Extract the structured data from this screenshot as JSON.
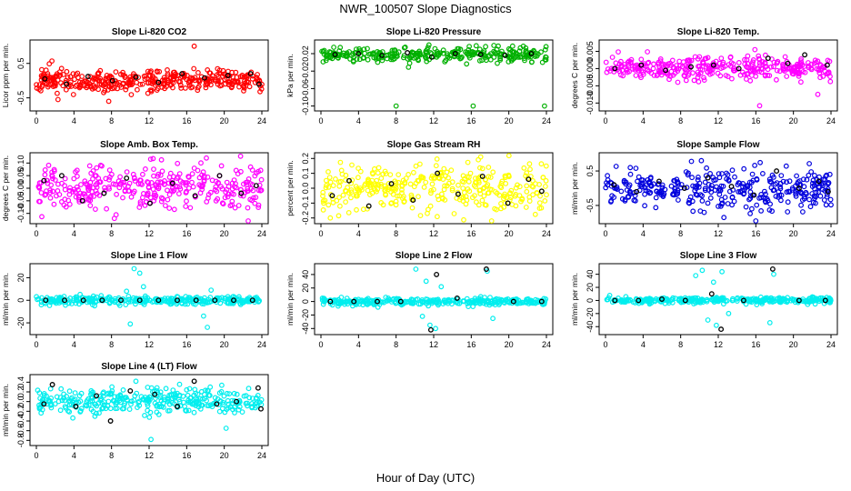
{
  "figure": {
    "title": "NWR_100507  Slope Diagnostics",
    "xlabel": "Hour of Day (UTC)"
  },
  "chart_data": [
    {
      "type": "scatter",
      "title": "Slope Li-820 CO2",
      "ylabel": "Licor ppm per min.",
      "xlim": [
        0,
        24
      ],
      "xticks": [
        0,
        4,
        8,
        12,
        16,
        20,
        24
      ],
      "ylim": [
        -0.8,
        1.1
      ],
      "yticks": [
        -0.5,
        0.5
      ],
      "ytick_labels": [
        "-0.5",
        "0.5"
      ],
      "color": "#ff0000",
      "center": 0.0,
      "spread": 0.16,
      "n": 380,
      "seed": 11,
      "outliers": [
        {
          "x": 16.8,
          "y": 1.0
        },
        {
          "x": 2.3,
          "y": -0.55
        },
        {
          "x": 7.7,
          "y": -0.6
        }
      ],
      "black_points": [
        {
          "x": 0.9,
          "y": 0.05
        },
        {
          "x": 3.2,
          "y": -0.1
        },
        {
          "x": 5.5,
          "y": 0.12
        },
        {
          "x": 8.1,
          "y": 0.0
        },
        {
          "x": 10.6,
          "y": 0.1
        },
        {
          "x": 13.0,
          "y": -0.05
        },
        {
          "x": 15.5,
          "y": 0.2
        },
        {
          "x": 17.9,
          "y": 0.08
        },
        {
          "x": 20.4,
          "y": 0.15
        },
        {
          "x": 22.8,
          "y": 0.2
        },
        {
          "x": 23.7,
          "y": -0.1
        }
      ]
    },
    {
      "type": "scatter",
      "title": "Slope Li-820 Pressure",
      "ylabel": "kPa per min.",
      "xlim": [
        0,
        24
      ],
      "xticks": [
        0,
        4,
        8,
        12,
        16,
        20,
        24
      ],
      "ylim": [
        -0.105,
        0.045
      ],
      "yticks": [
        -0.1,
        -0.06,
        -0.02,
        0.02
      ],
      "ytick_labels": [
        "-0.10",
        "-0.06",
        "-0.02",
        "0.02"
      ],
      "color": "#00b000",
      "center": 0.018,
      "spread": 0.008,
      "n": 300,
      "seed": 23,
      "outliers": [
        {
          "x": 8.0,
          "y": -0.1
        },
        {
          "x": 16.2,
          "y": -0.1
        },
        {
          "x": 23.8,
          "y": -0.1
        },
        {
          "x": 11.5,
          "y": 0.04
        }
      ],
      "black_points": [
        {
          "x": 1.5,
          "y": 0.018
        },
        {
          "x": 4.0,
          "y": 0.02
        },
        {
          "x": 6.5,
          "y": 0.016
        },
        {
          "x": 9.2,
          "y": 0.022
        },
        {
          "x": 11.8,
          "y": 0.012
        },
        {
          "x": 14.3,
          "y": 0.02
        },
        {
          "x": 17.0,
          "y": 0.018
        },
        {
          "x": 19.6,
          "y": 0.016
        },
        {
          "x": 22.4,
          "y": 0.02
        }
      ]
    },
    {
      "type": "scatter",
      "title": "Slope Li-820 Temp.",
      "ylabel": "degrees C per min.",
      "xlim": [
        0,
        24
      ],
      "xticks": [
        0,
        4,
        8,
        12,
        16,
        20,
        24
      ],
      "ylim": [
        -0.0115,
        0.0075
      ],
      "yticks": [
        -0.01,
        -0.005,
        0.0,
        0.005
      ],
      "ytick_labels": [
        "-0.010",
        "-0.005",
        "0.000",
        "0.005"
      ],
      "color": "#ff00ff",
      "center": 0.0,
      "spread": 0.0016,
      "n": 340,
      "seed": 37,
      "outliers": [
        {
          "x": 16.4,
          "y": -0.0108
        },
        {
          "x": 15.9,
          "y": 0.0055
        },
        {
          "x": 22.6,
          "y": -0.0075
        }
      ],
      "black_points": [
        {
          "x": 1.0,
          "y": 0.0
        },
        {
          "x": 3.8,
          "y": 0.001
        },
        {
          "x": 6.4,
          "y": -0.0005
        },
        {
          "x": 9.1,
          "y": 0.0005
        },
        {
          "x": 11.5,
          "y": 0.001
        },
        {
          "x": 14.2,
          "y": 0.0
        },
        {
          "x": 17.3,
          "y": 0.003
        },
        {
          "x": 19.4,
          "y": 0.0015
        },
        {
          "x": 21.2,
          "y": 0.004
        },
        {
          "x": 23.6,
          "y": 0.001
        }
      ]
    },
    {
      "type": "scatter",
      "title": "Slope Amb. Box Temp.",
      "ylabel": "degrees C per min.",
      "xlim": [
        0,
        24
      ],
      "xticks": [
        0,
        4,
        8,
        12,
        16,
        20,
        24
      ],
      "ylim": [
        -0.13,
        0.13
      ],
      "yticks": [
        -0.1,
        -0.05,
        0.0,
        0.05,
        0.1
      ],
      "ytick_labels": [
        "-0.10",
        "-0.05",
        "0.00",
        "0.05",
        "0.10"
      ],
      "color": "#ff00ff",
      "center": 0.0,
      "spread": 0.045,
      "n": 340,
      "seed": 41,
      "outliers": [
        {
          "x": 8.3,
          "y": -0.12
        },
        {
          "x": 18.1,
          "y": 0.12
        }
      ],
      "black_points": [
        {
          "x": 0.8,
          "y": 0.03
        },
        {
          "x": 2.7,
          "y": 0.05
        },
        {
          "x": 4.9,
          "y": -0.05
        },
        {
          "x": 7.2,
          "y": -0.02
        },
        {
          "x": 9.6,
          "y": 0.04
        },
        {
          "x": 12.1,
          "y": -0.06
        },
        {
          "x": 14.5,
          "y": 0.02
        },
        {
          "x": 16.9,
          "y": -0.03
        },
        {
          "x": 19.5,
          "y": 0.05
        },
        {
          "x": 21.8,
          "y": -0.02
        },
        {
          "x": 23.4,
          "y": 0.01
        }
      ]
    },
    {
      "type": "scatter",
      "title": "Slope Gas Stream RH",
      "ylabel": "percent per min.",
      "xlim": [
        0,
        24
      ],
      "xticks": [
        0,
        4,
        8,
        12,
        16,
        20,
        24
      ],
      "ylim": [
        -0.22,
        0.22
      ],
      "yticks": [
        -0.2,
        -0.1,
        0.0,
        0.1,
        0.2
      ],
      "ytick_labels": [
        "-0.2",
        "-0.1",
        "0.0",
        "0.1",
        "0.2"
      ],
      "color": "#ffff00",
      "center": 0.0,
      "spread": 0.08,
      "n": 340,
      "seed": 53,
      "outliers": [
        {
          "x": 17.0,
          "y": 0.21
        },
        {
          "x": 1.0,
          "y": -0.2
        }
      ],
      "black_points": [
        {
          "x": 1.2,
          "y": -0.05
        },
        {
          "x": 3.0,
          "y": 0.05
        },
        {
          "x": 5.1,
          "y": -0.12
        },
        {
          "x": 7.5,
          "y": 0.03
        },
        {
          "x": 9.8,
          "y": -0.08
        },
        {
          "x": 12.4,
          "y": 0.1
        },
        {
          "x": 14.6,
          "y": -0.04
        },
        {
          "x": 17.2,
          "y": 0.08
        },
        {
          "x": 19.9,
          "y": -0.1
        },
        {
          "x": 22.1,
          "y": 0.06
        },
        {
          "x": 23.5,
          "y": -0.02
        }
      ]
    },
    {
      "type": "scatter",
      "title": "Slope Sample Flow",
      "ylabel": "ml/min per min.",
      "xlim": [
        0,
        24
      ],
      "xticks": [
        0,
        4,
        8,
        12,
        16,
        20,
        24
      ],
      "ylim": [
        -0.95,
        0.95
      ],
      "yticks": [
        -0.5,
        0.5
      ],
      "ytick_labels": [
        "-0.5",
        "0.5"
      ],
      "color": "#0000dd",
      "center": 0.0,
      "spread": 0.3,
      "n": 340,
      "seed": 61,
      "outliers": [
        {
          "x": 12.6,
          "y": -0.85
        },
        {
          "x": 10.2,
          "y": 0.8
        }
      ],
      "black_points": [
        {
          "x": 0.9,
          "y": 0.1
        },
        {
          "x": 3.3,
          "y": -0.1
        },
        {
          "x": 5.7,
          "y": 0.2
        },
        {
          "x": 8.4,
          "y": 0.0
        },
        {
          "x": 10.9,
          "y": 0.3
        },
        {
          "x": 13.4,
          "y": 0.05
        },
        {
          "x": 15.8,
          "y": -0.2
        },
        {
          "x": 18.2,
          "y": 0.5
        },
        {
          "x": 20.6,
          "y": 0.0
        },
        {
          "x": 22.7,
          "y": 0.2
        },
        {
          "x": 23.7,
          "y": -0.1
        }
      ]
    },
    {
      "type": "scatter",
      "title": "Slope Line 1 Flow",
      "ylabel": "ml/min per min.",
      "xlim": [
        0,
        24
      ],
      "xticks": [
        0,
        4,
        8,
        12,
        16,
        20,
        24
      ],
      "ylim": [
        -28,
        30
      ],
      "yticks": [
        -20,
        0,
        20
      ],
      "ytick_labels": [
        "-20",
        "0",
        "20"
      ],
      "color": "#00eeee",
      "center": 0.0,
      "spread": 1.8,
      "n": 320,
      "seed": 71,
      "outliers": [
        {
          "x": 10.4,
          "y": 28
        },
        {
          "x": 11.0,
          "y": 24
        },
        {
          "x": 11.4,
          "y": 12
        },
        {
          "x": 10.0,
          "y": -21
        },
        {
          "x": 18.2,
          "y": -24
        },
        {
          "x": 17.8,
          "y": -14
        },
        {
          "x": 9.6,
          "y": 8
        },
        {
          "x": 18.6,
          "y": 9
        }
      ],
      "black_points": [
        {
          "x": 1.0,
          "y": 0
        },
        {
          "x": 3.0,
          "y": 0
        },
        {
          "x": 5.0,
          "y": 0
        },
        {
          "x": 7.0,
          "y": 0
        },
        {
          "x": 9.0,
          "y": 0
        },
        {
          "x": 11.0,
          "y": 0
        },
        {
          "x": 13.0,
          "y": 0
        },
        {
          "x": 15.0,
          "y": 0
        },
        {
          "x": 17.0,
          "y": 0
        },
        {
          "x": 19.0,
          "y": 0
        },
        {
          "x": 21.0,
          "y": 0
        },
        {
          "x": 23.0,
          "y": 0
        }
      ]
    },
    {
      "type": "scatter",
      "title": "Slope Line 2 Flow",
      "ylabel": "ml/min per min.",
      "xlim": [
        0,
        24
      ],
      "xticks": [
        0,
        4,
        8,
        12,
        16,
        20,
        24
      ],
      "ylim": [
        -45,
        52
      ],
      "yticks": [
        -40,
        -20,
        0,
        20,
        40
      ],
      "ytick_labels": [
        "-40",
        "-20",
        "0",
        "20",
        "40"
      ],
      "color": "#00eeee",
      "center": 0.0,
      "spread": 2.5,
      "n": 320,
      "seed": 83,
      "outliers": [
        {
          "x": 10.1,
          "y": 48
        },
        {
          "x": 11.2,
          "y": 30
        },
        {
          "x": 10.8,
          "y": -22
        },
        {
          "x": 11.6,
          "y": -35
        },
        {
          "x": 12.2,
          "y": -40
        },
        {
          "x": 17.7,
          "y": 45
        },
        {
          "x": 18.3,
          "y": -25
        },
        {
          "x": 12.8,
          "y": 22
        }
      ],
      "black_points": [
        {
          "x": 1.0,
          "y": 0
        },
        {
          "x": 3.5,
          "y": 0
        },
        {
          "x": 6.0,
          "y": 0
        },
        {
          "x": 8.5,
          "y": 0
        },
        {
          "x": 11.7,
          "y": -42
        },
        {
          "x": 12.3,
          "y": 40
        },
        {
          "x": 14.5,
          "y": 5
        },
        {
          "x": 17.6,
          "y": 48
        },
        {
          "x": 20.5,
          "y": 0
        },
        {
          "x": 23.5,
          "y": 0
        }
      ]
    },
    {
      "type": "scatter",
      "title": "Slope Line 3 Flow",
      "ylabel": "ml/min per min.",
      "xlim": [
        0,
        24
      ],
      "xticks": [
        0,
        4,
        8,
        12,
        16,
        20,
        24
      ],
      "ylim": [
        -48,
        52
      ],
      "yticks": [
        -40,
        -20,
        0,
        20,
        40
      ],
      "ytick_labels": [
        "-40",
        "-20",
        "0",
        "20",
        "40"
      ],
      "color": "#00eeee",
      "center": 0.0,
      "spread": 2.5,
      "n": 320,
      "seed": 97,
      "outliers": [
        {
          "x": 9.6,
          "y": 38
        },
        {
          "x": 10.3,
          "y": 46
        },
        {
          "x": 10.9,
          "y": -30
        },
        {
          "x": 11.5,
          "y": 28
        },
        {
          "x": 11.8,
          "y": -38
        },
        {
          "x": 12.4,
          "y": 44
        },
        {
          "x": 13.1,
          "y": -20
        },
        {
          "x": 17.5,
          "y": -34
        },
        {
          "x": 17.9,
          "y": 40
        }
      ],
      "black_points": [
        {
          "x": 1.0,
          "y": 0
        },
        {
          "x": 3.5,
          "y": 0
        },
        {
          "x": 6.0,
          "y": 2
        },
        {
          "x": 8.5,
          "y": 0
        },
        {
          "x": 11.3,
          "y": 10
        },
        {
          "x": 12.3,
          "y": -44
        },
        {
          "x": 14.7,
          "y": 0
        },
        {
          "x": 17.8,
          "y": 48
        },
        {
          "x": 20.6,
          "y": 0
        },
        {
          "x": 23.4,
          "y": 0
        }
      ]
    },
    {
      "type": "scatter",
      "title": "Slope Line 4 (LT) Flow",
      "ylabel": "ml/min per min.",
      "xlim": [
        0,
        24
      ],
      "xticks": [
        0,
        4,
        8,
        12,
        16,
        20,
        24
      ],
      "ylim": [
        -0.85,
        0.5
      ],
      "yticks": [
        -0.8,
        -0.6,
        -0.4,
        -0.2,
        0.0,
        0.2,
        0.4
      ],
      "ytick_labels": [
        "-0.8",
        "-0.6",
        "-0.4",
        "-0.2",
        "0.0",
        "0.2",
        "0.4"
      ],
      "color": "#00eeee",
      "center": 0.0,
      "spread": 0.13,
      "n": 340,
      "seed": 109,
      "outliers": [
        {
          "x": 12.2,
          "y": -0.78
        },
        {
          "x": 10.6,
          "y": 0.42
        },
        {
          "x": 20.2,
          "y": -0.55
        }
      ],
      "black_points": [
        {
          "x": 0.8,
          "y": -0.05
        },
        {
          "x": 1.7,
          "y": 0.35
        },
        {
          "x": 4.2,
          "y": -0.1
        },
        {
          "x": 6.4,
          "y": 0.12
        },
        {
          "x": 7.9,
          "y": -0.4
        },
        {
          "x": 10.0,
          "y": 0.22
        },
        {
          "x": 12.6,
          "y": 0.15
        },
        {
          "x": 15.0,
          "y": -0.1
        },
        {
          "x": 16.8,
          "y": 0.42
        },
        {
          "x": 19.2,
          "y": -0.05
        },
        {
          "x": 21.3,
          "y": 0.0
        },
        {
          "x": 23.6,
          "y": 0.28
        },
        {
          "x": 23.9,
          "y": -0.15
        }
      ]
    }
  ]
}
